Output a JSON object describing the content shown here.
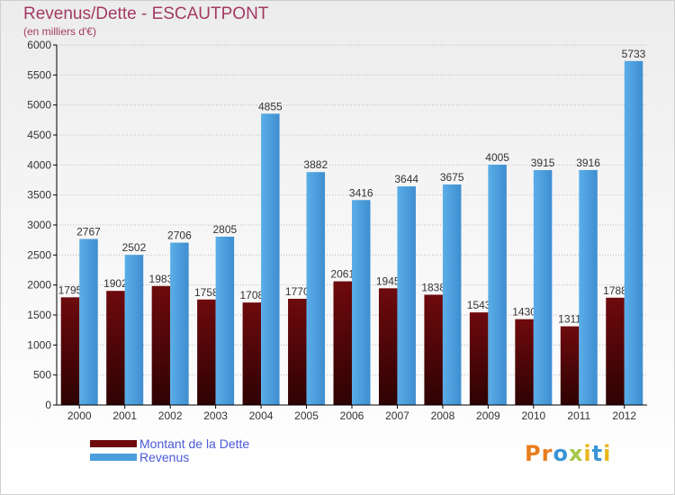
{
  "title": "Revenus/Dette - ESCAUTPONT",
  "subtitle": "(en milliers d'€)",
  "brand": {
    "logo_text": "Proxiti",
    "letter_colors": [
      "#e87d1e",
      "#e87d1e",
      "#3a95d5",
      "#a6c84a",
      "#e8b71e",
      "#3a95d5",
      "#e8b71e"
    ]
  },
  "colors": {
    "dette": "#6e0a0d",
    "revenus": "#4a9ede",
    "axis": "#000000",
    "grid": "#bbbbbb"
  },
  "chart_data": {
    "type": "bar",
    "title": "Revenus/Dette - ESCAUTPONT",
    "subtitle": "(en milliers d'€)",
    "categories": [
      "2000",
      "2001",
      "2002",
      "2003",
      "2004",
      "2005",
      "2006",
      "2007",
      "2008",
      "2009",
      "2010",
      "2011",
      "2012"
    ],
    "series": [
      {
        "name": "Montant de la Dette",
        "values": [
          1795,
          1902,
          1983,
          1758,
          1708,
          1770,
          2061,
          1945,
          1838,
          1543,
          1430,
          1311,
          1788
        ],
        "labels": [
          "1795",
          "1902",
          "1983",
          "1758",
          "1708",
          "1770",
          "2061",
          "1945",
          "1838",
          "1543",
          "1430",
          "1311",
          "1788"
        ]
      },
      {
        "name": "Revenus",
        "values": [
          2767,
          2502,
          2706,
          2805,
          4855,
          3882,
          3416,
          3644,
          3675,
          4005,
          3915,
          3916,
          5733
        ],
        "labels": [
          "2767",
          "2502",
          "2706",
          "2805",
          "4855",
          "3882",
          "3416",
          "3644",
          "3675",
          "4005",
          "3915",
          "3916",
          "5733"
        ]
      }
    ],
    "yticks": [
      "0",
      "500",
      "1000",
      "1500",
      "2000",
      "2500",
      "3000",
      "3500",
      "4000",
      "4500",
      "5000",
      "5500",
      "6000"
    ],
    "ylim": [
      0,
      6000
    ],
    "grid": true,
    "xlabel": "",
    "ylabel": "",
    "legend_position": "bottom-left"
  }
}
